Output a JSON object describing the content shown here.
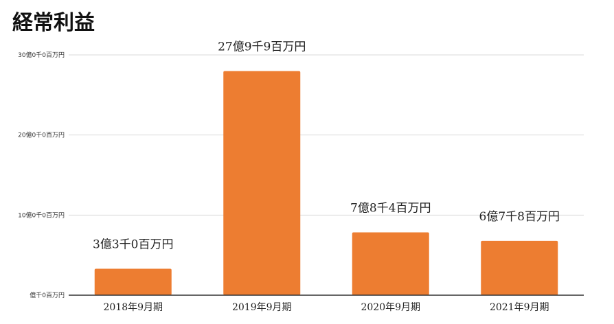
{
  "chart_data": {
    "type": "bar",
    "title": "経常利益",
    "categories": [
      "2018年9月期",
      "2019年9月期",
      "2020年9月期",
      "2021年9月期"
    ],
    "values": [
      330,
      2799,
      784,
      678
    ],
    "value_unit": "百万円",
    "data_labels": [
      "3億3千0百万円",
      "27億9千9百万円",
      "7億8千4百万円",
      "6億7千8百万円"
    ],
    "ylim": [
      0,
      3000
    ],
    "yticks": [
      {
        "value": 0,
        "label": "億千0百万円"
      },
      {
        "value": 1000,
        "label": "10億0千0百万円"
      },
      {
        "value": 2000,
        "label": "20億0千0百万円"
      },
      {
        "value": 3000,
        "label": "30億0千0百万円"
      }
    ],
    "grid": true,
    "legend": "none",
    "bar_color": "#ED7D31",
    "grid_color": "#D9D9D9",
    "axis_color": "#333333"
  }
}
